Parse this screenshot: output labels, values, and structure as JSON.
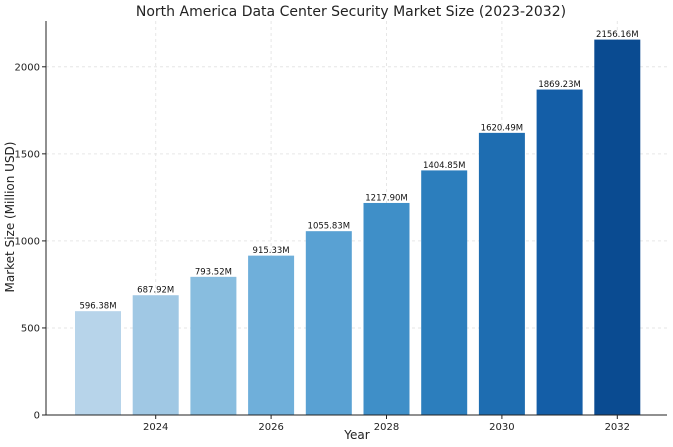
{
  "chart_data": {
    "type": "bar",
    "title": "North America Data Center Security Market Size (2023-2032)",
    "xlabel": "Year",
    "ylabel": "Market Size (Million USD)",
    "categories": [
      "2023",
      "2024",
      "2025",
      "2026",
      "2027",
      "2028",
      "2029",
      "2030",
      "2031",
      "2032"
    ],
    "values": [
      596.38,
      687.92,
      793.52,
      915.33,
      1055.83,
      1217.9,
      1404.85,
      1620.49,
      1869.23,
      2156.16
    ],
    "data_labels": [
      "596.38M",
      "687.92M",
      "793.52M",
      "915.33M",
      "1055.83M",
      "1217.90M",
      "1404.85M",
      "1620.49M",
      "1869.23M",
      "2156.16M"
    ],
    "x_ticks": [
      "2024",
      "2026",
      "2028",
      "2030",
      "2032"
    ],
    "y_ticks": [
      "0",
      "500",
      "1000",
      "1500",
      "2000"
    ],
    "ylim": [
      0,
      2263
    ],
    "grid": true,
    "colors": [
      "#b7d4ea",
      "#a0c8e4",
      "#88bddf",
      "#6fafda",
      "#59a1d3",
      "#3f8fc8",
      "#2c7ebd",
      "#1e6db1",
      "#145ea7",
      "#0a4b91"
    ]
  }
}
